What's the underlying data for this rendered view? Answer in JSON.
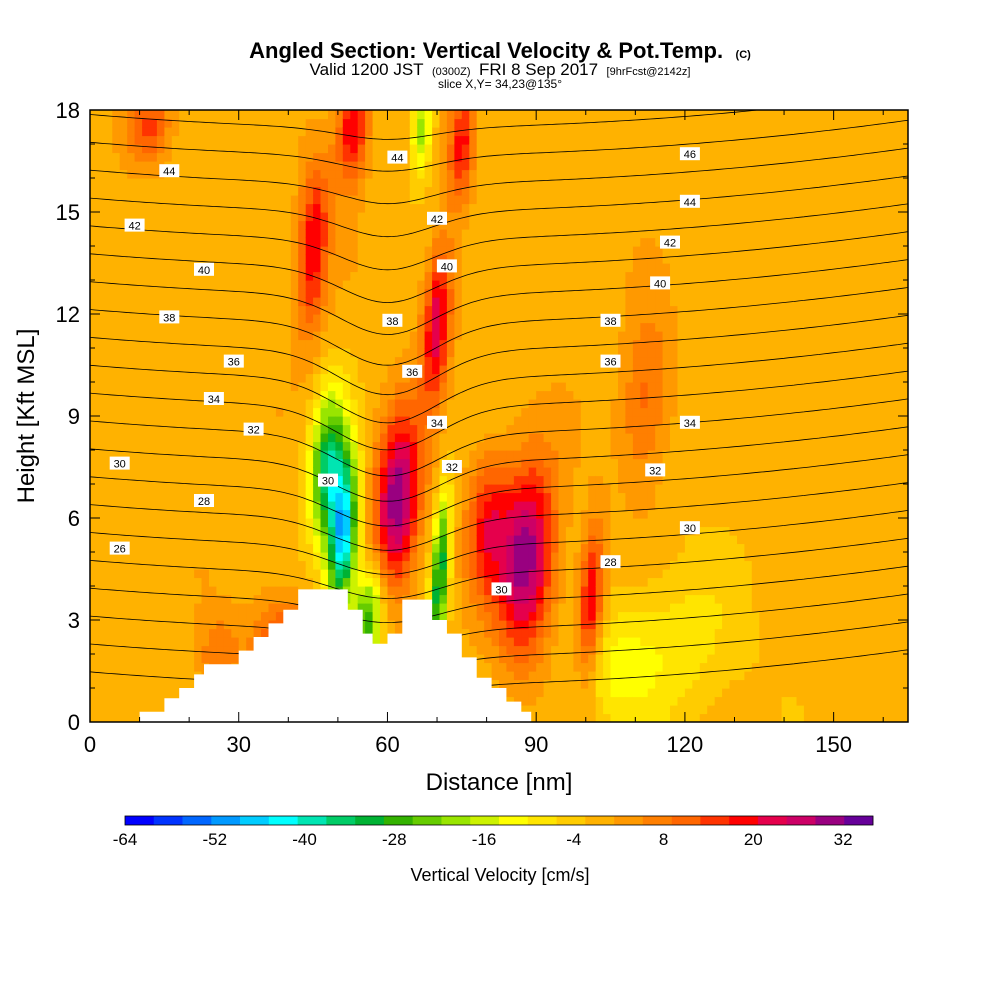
{
  "chart_data": {
    "type": "heatmap",
    "title": {
      "main": "Angled Section: Vertical Velocity & Pot.Temp.",
      "unit": "(C)",
      "line2_prefix": "Valid 1200 JST",
      "line2_utc": "(0300Z)",
      "line2_date": "FRI 8 Sep 2017",
      "line2_fcst": "[9hrFcst@2142z]",
      "line3": "slice X,Y= 34,23@135°"
    },
    "xlabel": "Distance [nm]",
    "ylabel": "Height [Kft MSL]",
    "xlim": [
      0,
      165
    ],
    "ylim": [
      0,
      18
    ],
    "x_ticks": [
      "0",
      "30",
      "60",
      "90",
      "120",
      "150"
    ],
    "x_tick_values": [
      0,
      30,
      60,
      90,
      120,
      150
    ],
    "y_ticks": [
      "0",
      "3",
      "6",
      "9",
      "12",
      "15",
      "18"
    ],
    "y_tick_values": [
      0,
      3,
      6,
      9,
      12,
      15,
      18
    ],
    "colorbar": {
      "label": "Vertical Velocity [cm/s]",
      "tick_labels": [
        "-64",
        "-52",
        "-40",
        "-28",
        "-16",
        "-4",
        "8",
        "20",
        "32"
      ],
      "range": [
        -64,
        36
      ],
      "step": 4,
      "colors": [
        "#0000ff",
        "#0033ff",
        "#0066ff",
        "#0099ff",
        "#00ccff",
        "#00ffff",
        "#00e5b2",
        "#00cc66",
        "#00b233",
        "#33b200",
        "#66cc00",
        "#99e500",
        "#ccf200",
        "#ffff00",
        "#ffe500",
        "#ffcc00",
        "#ffb200",
        "#ff9900",
        "#ff7f00",
        "#ff6600",
        "#ff3300",
        "#ff0000",
        "#e5004c",
        "#cc0066",
        "#990080",
        "#660099"
      ]
    },
    "background_level": "#ffb200",
    "velocity_features": [
      {
        "x": 12,
        "h": 17.5,
        "sx": 3,
        "sh": 0.8,
        "v": 14
      },
      {
        "x": 45,
        "h": 14.0,
        "sx": 2.2,
        "sh": 1.8,
        "v": 22
      },
      {
        "x": 53,
        "h": 17.5,
        "sx": 2.2,
        "sh": 1.2,
        "v": 24
      },
      {
        "x": 70,
        "h": 11.8,
        "sx": 2.0,
        "sh": 1.6,
        "v": 26
      },
      {
        "x": 75,
        "h": 17.0,
        "sx": 1.8,
        "sh": 1.2,
        "v": 20
      },
      {
        "x": 62,
        "h": 6.5,
        "sx": 3.2,
        "sh": 1.8,
        "v": 34
      },
      {
        "x": 88,
        "h": 4.8,
        "sx": 4.0,
        "sh": 2.0,
        "v": 32
      },
      {
        "x": 80,
        "h": 5.8,
        "sx": 3.0,
        "sh": 1.5,
        "v": 18
      },
      {
        "x": 101,
        "h": 3.5,
        "sx": 1.8,
        "sh": 1.6,
        "v": 24
      },
      {
        "x": 112,
        "h": 9.5,
        "sx": 3.5,
        "sh": 1.8,
        "v": 12
      },
      {
        "x": 38,
        "h": 2.5,
        "sx": 4,
        "sh": 1,
        "v": 14
      },
      {
        "x": 26,
        "h": 2.0,
        "sx": 3,
        "sh": 0.8,
        "v": 10
      },
      {
        "x": 48,
        "h": 7.5,
        "sx": 2.5,
        "sh": 1.5,
        "v": -36
      },
      {
        "x": 51,
        "h": 5.5,
        "sx": 2.0,
        "sh": 1.5,
        "v": -48
      },
      {
        "x": 56,
        "h": 3.0,
        "sx": 2.2,
        "sh": 1.2,
        "v": -30
      },
      {
        "x": 70.5,
        "h": 4.2,
        "sx": 1.2,
        "sh": 1.8,
        "v": -34
      },
      {
        "x": 67,
        "h": 17.5,
        "sx": 1.5,
        "sh": 1.0,
        "v": -22
      },
      {
        "x": 118,
        "h": 2.2,
        "sx": 10,
        "sh": 1.8,
        "v": -8
      },
      {
        "x": 105,
        "h": 1.5,
        "sx": 6,
        "sh": 1.2,
        "v": -8
      }
    ],
    "terrain": [
      [
        0,
        0
      ],
      [
        10,
        0
      ],
      [
        10,
        0.3
      ],
      [
        15,
        0.3
      ],
      [
        15,
        0.7
      ],
      [
        18,
        0.7
      ],
      [
        18,
        1.0
      ],
      [
        21,
        1.0
      ],
      [
        21,
        1.4
      ],
      [
        23,
        1.4
      ],
      [
        23,
        1.7
      ],
      [
        30,
        1.7
      ],
      [
        30,
        2.1
      ],
      [
        33,
        2.1
      ],
      [
        33,
        2.5
      ],
      [
        36,
        2.5
      ],
      [
        36,
        2.9
      ],
      [
        39,
        2.9
      ],
      [
        39,
        3.3
      ],
      [
        42,
        3.3
      ],
      [
        42,
        3.9
      ],
      [
        52,
        3.9
      ],
      [
        52,
        3.3
      ],
      [
        55,
        3.3
      ],
      [
        55,
        2.6
      ],
      [
        57,
        2.6
      ],
      [
        57,
        2.3
      ],
      [
        60,
        2.3
      ],
      [
        60,
        2.6
      ],
      [
        63,
        2.6
      ],
      [
        63,
        3.6
      ],
      [
        69,
        3.6
      ],
      [
        69,
        3.0
      ],
      [
        72,
        3.0
      ],
      [
        72,
        2.6
      ],
      [
        75,
        2.6
      ],
      [
        75,
        1.9
      ],
      [
        78,
        1.9
      ],
      [
        78,
        1.3
      ],
      [
        81,
        1.3
      ],
      [
        81,
        1.0
      ],
      [
        84,
        1.0
      ],
      [
        84,
        0.6
      ],
      [
        87,
        0.6
      ],
      [
        87,
        0.3
      ],
      [
        89,
        0.3
      ],
      [
        89,
        0
      ],
      [
        165,
        0
      ]
    ],
    "potential_temperature": {
      "levels": [
        26,
        27,
        28,
        29,
        30,
        31,
        32,
        33,
        34,
        35,
        36,
        37,
        38,
        39,
        40,
        41,
        42,
        43,
        44,
        45,
        46
      ],
      "contour_labels": [
        {
          "text": "44",
          "x": 16,
          "h": 16.2
        },
        {
          "text": "42",
          "x": 9,
          "h": 14.6
        },
        {
          "text": "40",
          "x": 23,
          "h": 13.3
        },
        {
          "text": "38",
          "x": 16,
          "h": 11.9
        },
        {
          "text": "36",
          "x": 29,
          "h": 10.6
        },
        {
          "text": "34",
          "x": 25,
          "h": 9.5
        },
        {
          "text": "32",
          "x": 33,
          "h": 8.6
        },
        {
          "text": "30",
          "x": 6,
          "h": 7.6
        },
        {
          "text": "28",
          "x": 23,
          "h": 6.5
        },
        {
          "text": "26",
          "x": 6,
          "h": 5.1
        },
        {
          "text": "44",
          "x": 62,
          "h": 16.6
        },
        {
          "text": "42",
          "x": 70,
          "h": 14.8
        },
        {
          "text": "40",
          "x": 72,
          "h": 13.4
        },
        {
          "text": "38",
          "x": 61,
          "h": 11.8
        },
        {
          "text": "36",
          "x": 65,
          "h": 10.3
        },
        {
          "text": "34",
          "x": 70,
          "h": 8.8
        },
        {
          "text": "32",
          "x": 73,
          "h": 7.5
        },
        {
          "text": "30",
          "x": 48,
          "h": 7.1
        },
        {
          "text": "30",
          "x": 83,
          "h": 3.9
        },
        {
          "text": "28",
          "x": 105,
          "h": 4.7
        },
        {
          "text": "46",
          "x": 121,
          "h": 16.7
        },
        {
          "text": "44",
          "x": 121,
          "h": 15.3
        },
        {
          "text": "42",
          "x": 117,
          "h": 14.1
        },
        {
          "text": "40",
          "x": 115,
          "h": 12.9
        },
        {
          "text": "38",
          "x": 105,
          "h": 11.8
        },
        {
          "text": "36",
          "x": 105,
          "h": 10.6
        },
        {
          "text": "34",
          "x": 121,
          "h": 8.8
        },
        {
          "text": "32",
          "x": 114,
          "h": 7.4
        },
        {
          "text": "30",
          "x": 121,
          "h": 5.7
        }
      ]
    }
  }
}
